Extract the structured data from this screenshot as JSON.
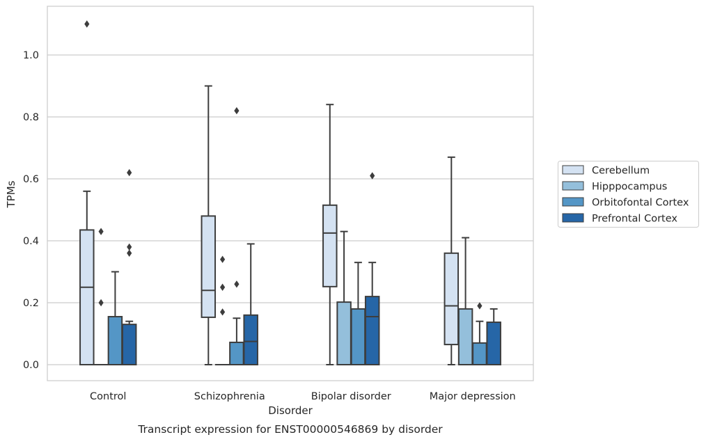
{
  "chart_data": {
    "type": "box",
    "title": "",
    "caption": "Transcript expression for ENST00000546869 by disorder",
    "xlabel": "Disorder",
    "ylabel": "TPMs",
    "ylim": [
      -0.05,
      1.16
    ],
    "yticks": [
      0.0,
      0.2,
      0.4,
      0.6,
      0.8,
      1.0
    ],
    "ytick_labels": [
      "0.0",
      "0.2",
      "0.4",
      "0.6",
      "0.8",
      "1.0"
    ],
    "grid": "horizontal",
    "legend_position": "right",
    "categories": [
      "Control",
      "Schizophrenia",
      "Bipolar disorder",
      "Major depression"
    ],
    "series": [
      {
        "name": "Cerebellum",
        "color": "#d4e2f2",
        "boxes": [
          {
            "category": "Control",
            "min": 0.0,
            "q1": 0.0,
            "median": 0.25,
            "q3": 0.435,
            "max": 0.56,
            "outliers": [
              1.1
            ]
          },
          {
            "category": "Schizophrenia",
            "min": 0.0,
            "q1": 0.153,
            "median": 0.24,
            "q3": 0.48,
            "max": 0.9,
            "outliers": []
          },
          {
            "category": "Bipolar disorder",
            "min": 0.0,
            "q1": 0.252,
            "median": 0.425,
            "q3": 0.515,
            "max": 0.84,
            "outliers": []
          },
          {
            "category": "Major depression",
            "min": 0.0,
            "q1": 0.065,
            "median": 0.19,
            "q3": 0.36,
            "max": 0.67,
            "outliers": []
          }
        ]
      },
      {
        "name": "Hipppocampus",
        "color": "#94bfdb",
        "boxes": [
          {
            "category": "Control",
            "min": 0.0,
            "q1": 0.0,
            "median": 0.0,
            "q3": 0.0,
            "max": 0.0,
            "outliers": [
              0.2,
              0.43
            ]
          },
          {
            "category": "Schizophrenia",
            "min": 0.0,
            "q1": 0.0,
            "median": 0.0,
            "q3": 0.0,
            "max": 0.0,
            "outliers": [
              0.17,
              0.25,
              0.34
            ]
          },
          {
            "category": "Bipolar disorder",
            "min": 0.0,
            "q1": 0.0,
            "median": 0.0,
            "q3": 0.202,
            "max": 0.43,
            "outliers": []
          },
          {
            "category": "Major depression",
            "min": 0.0,
            "q1": 0.0,
            "median": 0.0,
            "q3": 0.18,
            "max": 0.41,
            "outliers": []
          }
        ]
      },
      {
        "name": "Orbitofontal Cortex",
        "color": "#5496c6",
        "boxes": [
          {
            "category": "Control",
            "min": 0.0,
            "q1": 0.0,
            "median": 0.0,
            "q3": 0.155,
            "max": 0.3,
            "outliers": []
          },
          {
            "category": "Schizophrenia",
            "min": 0.0,
            "q1": 0.0,
            "median": 0.0,
            "q3": 0.072,
            "max": 0.15,
            "outliers": [
              0.26,
              0.82
            ]
          },
          {
            "category": "Bipolar disorder",
            "min": 0.0,
            "q1": 0.0,
            "median": 0.0,
            "q3": 0.18,
            "max": 0.33,
            "outliers": []
          },
          {
            "category": "Major depression",
            "min": 0.0,
            "q1": 0.0,
            "median": 0.0,
            "q3": 0.07,
            "max": 0.14,
            "outliers": [
              0.19
            ]
          }
        ]
      },
      {
        "name": "Prefrontal Cortex",
        "color": "#2666a7",
        "boxes": [
          {
            "category": "Control",
            "min": 0.0,
            "q1": 0.0,
            "median": 0.0,
            "q3": 0.13,
            "max": 0.14,
            "outliers": [
              0.36,
              0.38,
              0.62
            ]
          },
          {
            "category": "Schizophrenia",
            "min": 0.0,
            "q1": 0.0,
            "median": 0.075,
            "q3": 0.16,
            "max": 0.39,
            "outliers": []
          },
          {
            "category": "Bipolar disorder",
            "min": 0.0,
            "q1": 0.0,
            "median": 0.155,
            "q3": 0.22,
            "max": 0.33,
            "outliers": [
              0.61
            ]
          },
          {
            "category": "Major depression",
            "min": 0.0,
            "q1": 0.0,
            "median": 0.0,
            "q3": 0.137,
            "max": 0.18,
            "outliers": []
          }
        ]
      }
    ]
  }
}
